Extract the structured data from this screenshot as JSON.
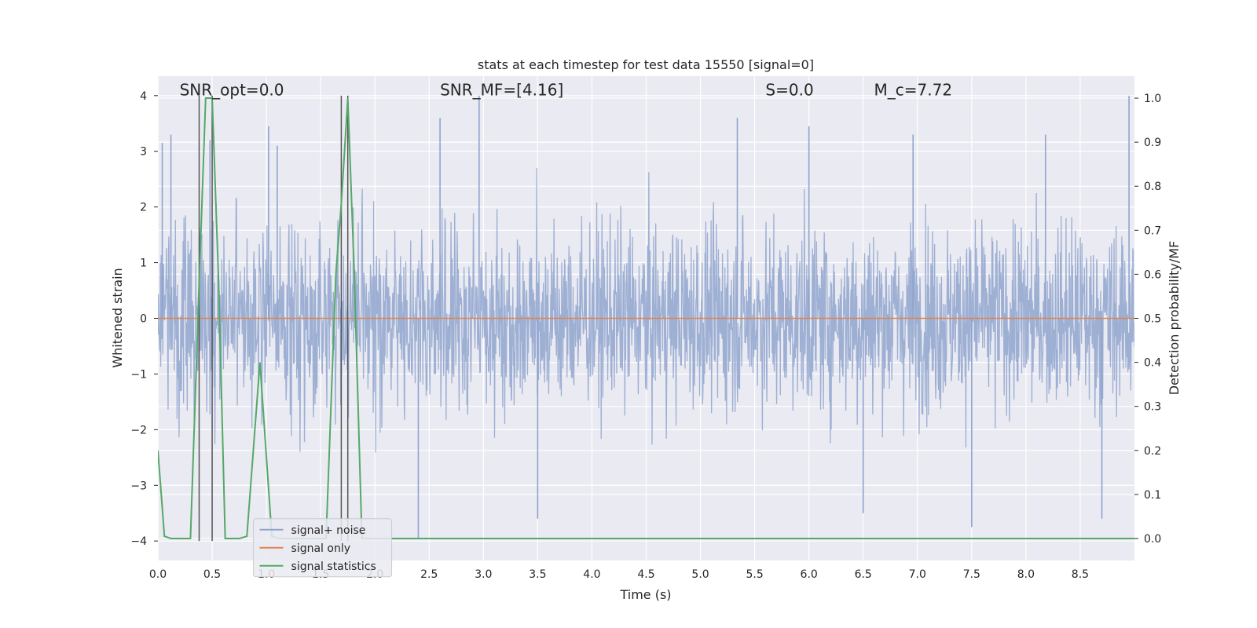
{
  "chart_data": {
    "type": "line",
    "title": "stats at each timestep for test data 15550 [signal=0]",
    "xlabel": "Time (s)",
    "ylabel": "Whitened strain",
    "y2label": "Detection probability/MF",
    "xlim": [
      0,
      9.0
    ],
    "ylim": [
      -4.35,
      4.35
    ],
    "y2lim": [
      -0.05,
      1.05
    ],
    "xticks": [
      0.0,
      0.5,
      1.0,
      1.5,
      2.0,
      2.5,
      3.0,
      3.5,
      4.0,
      4.5,
      5.0,
      5.5,
      6.0,
      6.5,
      7.0,
      7.5,
      8.0,
      8.5
    ],
    "xtick_labels": [
      "0.0",
      "0.5",
      "1.0",
      "1.5",
      "2.0",
      "2.5",
      "3.0",
      "3.5",
      "4.0",
      "4.5",
      "5.0",
      "5.5",
      "6.0",
      "6.5",
      "7.0",
      "7.5",
      "8.0",
      "8.5"
    ],
    "yticks": [
      4,
      3,
      2,
      1,
      0,
      -1,
      -2,
      -3,
      -4
    ],
    "ytick_labels": [
      "4",
      "3",
      "2",
      "1",
      "0",
      "−1",
      "−2",
      "−3",
      "−4"
    ],
    "y2ticks": [
      1.0,
      0.9,
      0.8,
      0.7,
      0.6,
      0.5,
      0.4,
      0.3,
      0.2,
      0.1,
      0.0
    ],
    "y2tick_labels": [
      "1.0",
      "0.9",
      "0.8",
      "0.7",
      "0.6",
      "0.5",
      "0.4",
      "0.3",
      "0.2",
      "0.1",
      "0.0"
    ],
    "grid": true,
    "legend_placement": "lower-left",
    "annotations": [
      {
        "text": "SNR_opt=0.0",
        "x": 0.2,
        "y": 4.1
      },
      {
        "text": "SNR_MF=[4.16]",
        "x": 2.6,
        "y": 4.1
      },
      {
        "text": "S=0.0",
        "x": 5.6,
        "y": 4.1
      },
      {
        "text": "M_c=7.72",
        "x": 6.6,
        "y": 4.1
      }
    ],
    "vertical_lines": [
      0.38,
      0.5,
      1.69,
      1.75
    ],
    "series": [
      {
        "name": "signal+ noise",
        "color": "#8fa4ce",
        "axis": "left",
        "amplitude_envelope": {
          "typical_max": 2.3,
          "typical_min": -2.3,
          "peak_max": 4.0,
          "peak_min": -3.95
        },
        "notable_peaks": [
          {
            "x": 0.04,
            "y": 3.15
          },
          {
            "x": 0.12,
            "y": 3.3
          },
          {
            "x": 0.48,
            "y": 3.2
          },
          {
            "x": 1.02,
            "y": 3.45
          },
          {
            "x": 1.1,
            "y": 3.1
          },
          {
            "x": 2.6,
            "y": 3.6
          },
          {
            "x": 2.96,
            "y": 4.0
          },
          {
            "x": 5.34,
            "y": 3.6
          },
          {
            "x": 6.0,
            "y": 3.45
          },
          {
            "x": 6.96,
            "y": 3.3
          },
          {
            "x": 8.18,
            "y": 3.3
          },
          {
            "x": 8.95,
            "y": 4.0
          },
          {
            "x": 2.4,
            "y": -3.95
          },
          {
            "x": 3.5,
            "y": -3.6
          },
          {
            "x": 7.5,
            "y": -3.75
          },
          {
            "x": 6.5,
            "y": -3.5
          },
          {
            "x": 8.7,
            "y": -3.6
          }
        ]
      },
      {
        "name": "signal only",
        "color": "#dd8452",
        "axis": "left",
        "x": [
          0.0,
          9.0
        ],
        "y": [
          0.0,
          0.0
        ]
      },
      {
        "name": "signal statistics",
        "color": "#55a868",
        "axis": "right",
        "x": [
          0.0,
          0.06,
          0.12,
          0.25,
          0.3,
          0.38,
          0.44,
          0.5,
          0.56,
          0.62,
          0.75,
          0.82,
          0.94,
          1.05,
          1.12,
          1.55,
          1.64,
          1.69,
          1.75,
          1.81,
          1.88,
          9.0
        ],
        "y": [
          0.2,
          0.005,
          0.0,
          0.0,
          0.0,
          0.58,
          1.0,
          1.0,
          0.58,
          0.0,
          0.0,
          0.005,
          0.4,
          0.005,
          0.0,
          0.0,
          0.6,
          0.76,
          1.0,
          0.6,
          0.0,
          0.0
        ]
      }
    ]
  }
}
